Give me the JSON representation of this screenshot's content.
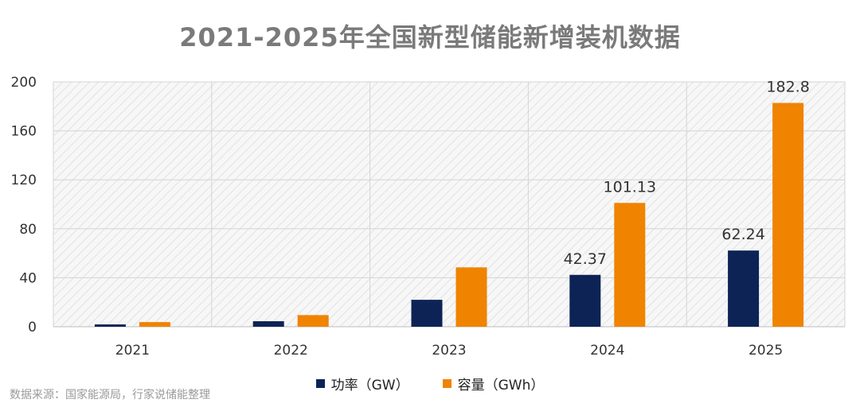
{
  "chart_data": {
    "type": "bar",
    "title": "2021-2025年全国新型储能新增装机数据",
    "categories": [
      "2021",
      "2022",
      "2023",
      "2024",
      "2025"
    ],
    "series": [
      {
        "name": "功率（GW）",
        "color": "#0d2356",
        "values": [
          1.9,
          4.5,
          22.0,
          42.37,
          62.24
        ],
        "labels": [
          null,
          null,
          null,
          "42.37",
          "62.24"
        ]
      },
      {
        "name": "容量（GWh）",
        "color": "#f08300",
        "values": [
          3.8,
          9.5,
          48.5,
          101.13,
          182.8
        ],
        "labels": [
          null,
          null,
          null,
          "101.13",
          "182.8"
        ]
      }
    ],
    "ylim": [
      0,
      200
    ],
    "yticks": [
      0,
      40,
      80,
      120,
      160,
      200
    ],
    "xlabel": "",
    "ylabel": "",
    "grid": true,
    "legend": "bottom-center"
  },
  "source_note": "数据来源：国家能源局，行家说储能整理"
}
